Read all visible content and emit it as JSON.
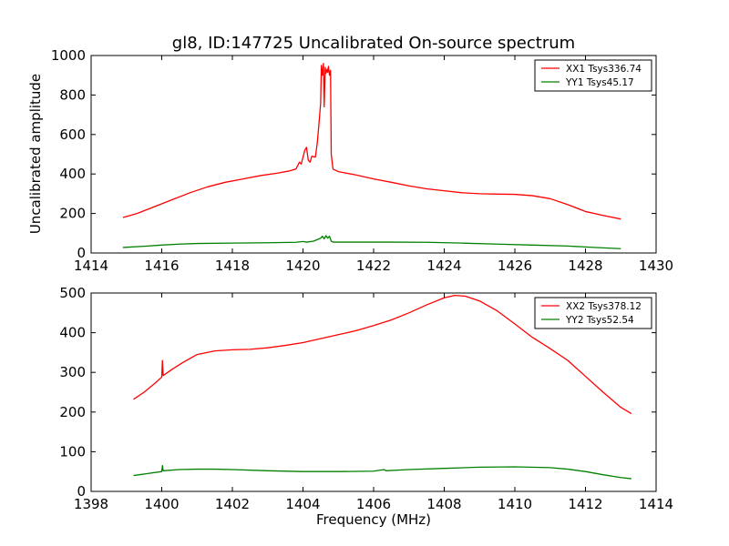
{
  "title": "gl8, ID:147725 Uncalibrated On-source spectrum",
  "ylabel": "Uncalibrated amplitude",
  "xlabel": "Frequency (MHz)",
  "chart_data": [
    {
      "type": "line",
      "xlim": [
        1414,
        1430
      ],
      "ylim": [
        0,
        1000
      ],
      "xticks": [
        "1414",
        "1416",
        "1418",
        "1420",
        "1422",
        "1424",
        "1426",
        "1428",
        "1430"
      ],
      "yticks": [
        "0",
        "200",
        "400",
        "600",
        "800",
        "1000"
      ],
      "legend_position": "top-right",
      "series": [
        {
          "name": "XX1 Tsys336.74",
          "color": "#ff0000",
          "points": [
            [
              1414.9,
              180
            ],
            [
              1415.3,
              200
            ],
            [
              1415.8,
              235
            ],
            [
              1416.3,
              270
            ],
            [
              1416.8,
              305
            ],
            [
              1417.3,
              335
            ],
            [
              1417.8,
              358
            ],
            [
              1418.3,
              375
            ],
            [
              1418.8,
              392
            ],
            [
              1419.3,
              405
            ],
            [
              1419.6,
              415
            ],
            [
              1419.8,
              425
            ],
            [
              1419.9,
              460
            ],
            [
              1419.95,
              450
            ],
            [
              1420.05,
              520
            ],
            [
              1420.1,
              535
            ],
            [
              1420.15,
              470
            ],
            [
              1420.2,
              460
            ],
            [
              1420.25,
              490
            ],
            [
              1420.35,
              485
            ],
            [
              1420.4,
              550
            ],
            [
              1420.45,
              650
            ],
            [
              1420.5,
              760
            ],
            [
              1420.52,
              950
            ],
            [
              1420.55,
              900
            ],
            [
              1420.58,
              960
            ],
            [
              1420.6,
              740
            ],
            [
              1420.63,
              940
            ],
            [
              1420.65,
              910
            ],
            [
              1420.68,
              930
            ],
            [
              1420.7,
              915
            ],
            [
              1420.72,
              945
            ],
            [
              1420.75,
              900
            ],
            [
              1420.78,
              925
            ],
            [
              1420.8,
              500
            ],
            [
              1420.85,
              425
            ],
            [
              1421.0,
              412
            ],
            [
              1421.5,
              395
            ],
            [
              1422.0,
              375
            ],
            [
              1422.5,
              358
            ],
            [
              1423.0,
              340
            ],
            [
              1423.5,
              325
            ],
            [
              1424.0,
              315
            ],
            [
              1424.5,
              305
            ],
            [
              1425.0,
              300
            ],
            [
              1425.5,
              298
            ],
            [
              1426.0,
              297
            ],
            [
              1426.5,
              290
            ],
            [
              1427.0,
              275
            ],
            [
              1427.5,
              245
            ],
            [
              1428.0,
              210
            ],
            [
              1428.5,
              190
            ],
            [
              1429.0,
              172
            ]
          ]
        },
        {
          "name": "YY1 Tsys45.17",
          "color": "#008000",
          "points": [
            [
              1414.9,
              28
            ],
            [
              1415.5,
              34
            ],
            [
              1416.0,
              40
            ],
            [
              1416.5,
              45
            ],
            [
              1417.0,
              48
            ],
            [
              1418.0,
              50
            ],
            [
              1419.0,
              52
            ],
            [
              1419.8,
              54
            ],
            [
              1420.0,
              58
            ],
            [
              1420.1,
              55
            ],
            [
              1420.3,
              60
            ],
            [
              1420.5,
              75
            ],
            [
              1420.55,
              85
            ],
            [
              1420.6,
              72
            ],
            [
              1420.65,
              88
            ],
            [
              1420.7,
              75
            ],
            [
              1420.75,
              85
            ],
            [
              1420.8,
              60
            ],
            [
              1420.85,
              55
            ],
            [
              1421.5,
              55
            ],
            [
              1422.5,
              55
            ],
            [
              1423.5,
              54
            ],
            [
              1424.5,
              50
            ],
            [
              1425.5,
              45
            ],
            [
              1426.5,
              40
            ],
            [
              1427.5,
              35
            ],
            [
              1428.5,
              26
            ],
            [
              1429.0,
              22
            ]
          ]
        }
      ]
    },
    {
      "type": "line",
      "xlim": [
        1398,
        1414
      ],
      "ylim": [
        0,
        500
      ],
      "xticks": [
        "1398",
        "1400",
        "1402",
        "1404",
        "1406",
        "1408",
        "1410",
        "1412",
        "1414"
      ],
      "yticks": [
        "0",
        "100",
        "200",
        "300",
        "400",
        "500"
      ],
      "legend_position": "top-right",
      "series": [
        {
          "name": "XX2 Tsys378.12",
          "color": "#ff0000",
          "points": [
            [
              1399.2,
              232
            ],
            [
              1399.5,
              250
            ],
            [
              1399.8,
              272
            ],
            [
              1400.0,
              288
            ],
            [
              1400.02,
              330
            ],
            [
              1400.04,
              292
            ],
            [
              1400.3,
              308
            ],
            [
              1400.6,
              325
            ],
            [
              1401.0,
              345
            ],
            [
              1401.5,
              354
            ],
            [
              1402.0,
              357
            ],
            [
              1402.5,
              358
            ],
            [
              1403.0,
              362
            ],
            [
              1403.5,
              368
            ],
            [
              1404.0,
              375
            ],
            [
              1404.5,
              385
            ],
            [
              1405.0,
              395
            ],
            [
              1405.5,
              405
            ],
            [
              1406.0,
              418
            ],
            [
              1406.5,
              432
            ],
            [
              1407.0,
              450
            ],
            [
              1407.5,
              470
            ],
            [
              1408.0,
              488
            ],
            [
              1408.3,
              494
            ],
            [
              1408.6,
              492
            ],
            [
              1409.0,
              480
            ],
            [
              1409.5,
              455
            ],
            [
              1410.0,
              422
            ],
            [
              1410.5,
              388
            ],
            [
              1411.0,
              360
            ],
            [
              1411.5,
              330
            ],
            [
              1412.0,
              290
            ],
            [
              1412.5,
              250
            ],
            [
              1413.0,
              212
            ],
            [
              1413.3,
              196
            ]
          ]
        },
        {
          "name": "YY2 Tsys52.54",
          "color": "#008000",
          "points": [
            [
              1399.2,
              40
            ],
            [
              1399.6,
              45
            ],
            [
              1400.0,
              50
            ],
            [
              1400.02,
              65
            ],
            [
              1400.04,
              52
            ],
            [
              1400.5,
              55
            ],
            [
              1401.0,
              56
            ],
            [
              1401.5,
              56
            ],
            [
              1402.0,
              55
            ],
            [
              1403.0,
              52
            ],
            [
              1404.0,
              50
            ],
            [
              1405.0,
              50
            ],
            [
              1406.0,
              51
            ],
            [
              1406.3,
              55
            ],
            [
              1406.35,
              52
            ],
            [
              1407.0,
              55
            ],
            [
              1408.0,
              58
            ],
            [
              1409.0,
              61
            ],
            [
              1410.0,
              62
            ],
            [
              1411.0,
              60
            ],
            [
              1411.5,
              56
            ],
            [
              1412.0,
              50
            ],
            [
              1412.5,
              42
            ],
            [
              1413.0,
              35
            ],
            [
              1413.3,
              32
            ]
          ]
        }
      ]
    }
  ]
}
